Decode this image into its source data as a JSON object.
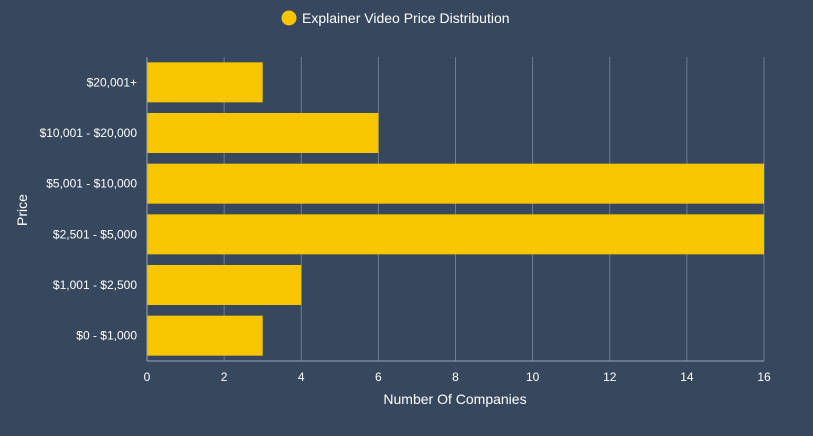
{
  "colors": {
    "background": "#36475e",
    "bar": "#f7c600",
    "grid": "#6e7d92",
    "axis": "#9aa6b6"
  },
  "chart_data": {
    "type": "bar",
    "orientation": "horizontal",
    "legend_position": "top-center",
    "grid": true,
    "series": [
      {
        "name": "Explainer Video Price Distribution",
        "values": [
          3,
          6,
          16,
          16,
          4,
          3
        ]
      }
    ],
    "categories": [
      "$20,001+",
      "$10,001 - $20,000",
      "$5,001 - $10,000",
      "$2,501 - $5,000",
      "$1,001 - $2,500",
      "$0 - $1,000"
    ],
    "xlabel": "Number Of Companies",
    "ylabel": "Price",
    "xlim": [
      0,
      16
    ],
    "xticks": [
      0,
      2,
      4,
      6,
      8,
      10,
      12,
      14,
      16
    ]
  }
}
